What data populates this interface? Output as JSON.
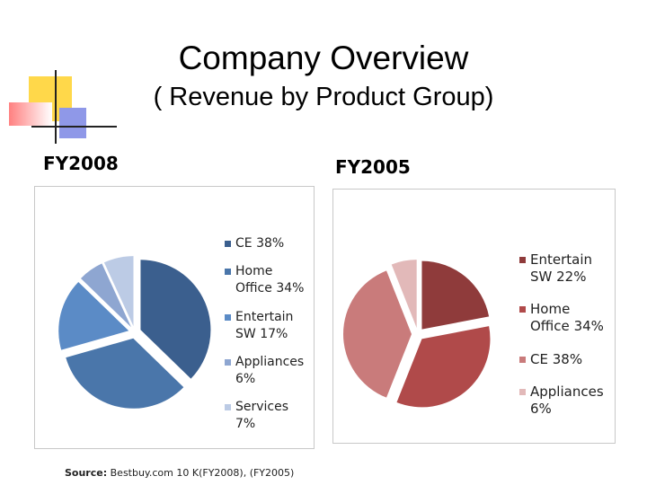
{
  "slide": {
    "title": "Company Overview",
    "subtitle": "( Revenue by Product Group)",
    "source_label": "Source:",
    "source": "Bestbuy.com 10 K(FY2008), (FY2005)"
  },
  "chart_data": [
    {
      "type": "pie",
      "title": "FY2008",
      "categories": [
        "CE",
        "Home Office",
        "Entertain SW",
        "Appliances",
        "Services"
      ],
      "values": [
        38,
        34,
        17,
        6,
        7
      ],
      "value_labels": [
        "38%",
        "34%",
        "17%",
        "6%",
        "7%"
      ],
      "colors": [
        "#3b5f8e",
        "#4a76aa",
        "#5b8bc6",
        "#8ea6d1",
        "#bccbe5"
      ]
    },
    {
      "type": "pie",
      "title": "FY2005",
      "categories": [
        "Entertain SW",
        "Home Office",
        "CE",
        "Appliances"
      ],
      "values": [
        22,
        34,
        38,
        6
      ],
      "value_labels": [
        "22%",
        "34%",
        "38%",
        "6%"
      ],
      "colors": [
        "#8f3b3b",
        "#b04a4a",
        "#c97b7b",
        "#e2b9b9"
      ]
    }
  ]
}
